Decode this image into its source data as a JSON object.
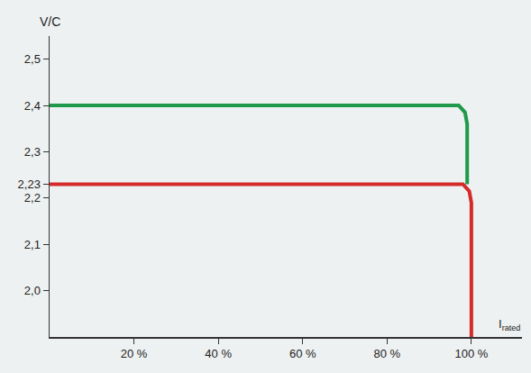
{
  "chart_data": {
    "type": "line",
    "y_label": "V/C",
    "x_label": "I",
    "x_label_subscript": "rated",
    "series": [
      {
        "color": "#1e9a4a",
        "x": [
          0,
          97,
          98.5,
          99,
          99
        ],
        "values": [
          2.4,
          2.4,
          2.385,
          2.36,
          2.23
        ]
      },
      {
        "color": "#d42a2a",
        "x": [
          0,
          98,
          99.5,
          100,
          100
        ],
        "values": [
          2.23,
          2.23,
          2.215,
          2.19,
          1.9
        ]
      }
    ],
    "xlim": [
      0,
      112
    ],
    "xticks": [
      {
        "value": 20,
        "label": "20 %"
      },
      {
        "value": 40,
        "label": "40 %"
      },
      {
        "value": 60,
        "label": "60 %"
      },
      {
        "value": 80,
        "label": "80 %"
      },
      {
        "value": 100,
        "label": "100 %"
      }
    ],
    "ylim": [
      1.9,
      2.55
    ],
    "yticks": [
      {
        "value": 2.0,
        "label": "2,0"
      },
      {
        "value": 2.1,
        "label": "2,1"
      },
      {
        "value": 2.2,
        "label": "2,2"
      },
      {
        "value": 2.23,
        "label": "2,23"
      },
      {
        "value": 2.3,
        "label": "2,3"
      },
      {
        "value": 2.4,
        "label": "2,4"
      },
      {
        "value": 2.5,
        "label": "2,5"
      }
    ],
    "grid": false
  }
}
